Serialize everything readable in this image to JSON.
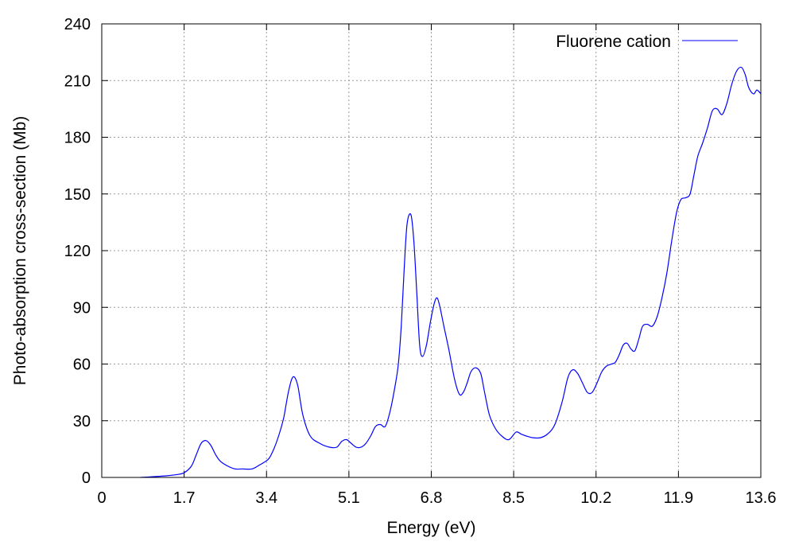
{
  "chart_data": {
    "type": "line",
    "title": "",
    "xlabel": "Energy (eV)",
    "ylabel": "Photo-absorption cross-section (Mb)",
    "xlim": [
      0,
      13.6
    ],
    "ylim": [
      0,
      240
    ],
    "xticks": [
      0,
      1.7,
      3.4,
      5.1,
      6.8,
      8.5,
      10.2,
      11.9,
      13.6
    ],
    "xtick_labels": [
      "0",
      "1.7",
      "3.4",
      "5.1",
      "6.8",
      "8.5",
      "10.2",
      "11.9",
      "13.6"
    ],
    "yticks": [
      0,
      30,
      60,
      90,
      120,
      150,
      180,
      210,
      240
    ],
    "ytick_labels": [
      "0",
      "30",
      "60",
      "90",
      "120",
      "150",
      "180",
      "210",
      "240"
    ],
    "grid": true,
    "legend_position": "top-right",
    "series": [
      {
        "name": "Fluorene cation",
        "color": "#0000ff",
        "x": [
          0.8,
          1.0,
          1.3,
          1.55,
          1.7,
          1.85,
          1.95,
          2.05,
          2.15,
          2.25,
          2.35,
          2.45,
          2.6,
          2.75,
          2.9,
          3.1,
          3.25,
          3.35,
          3.45,
          3.55,
          3.65,
          3.75,
          3.8,
          3.85,
          3.92,
          3.98,
          4.05,
          4.15,
          4.3,
          4.5,
          4.7,
          4.85,
          4.95,
          5.05,
          5.15,
          5.25,
          5.35,
          5.45,
          5.55,
          5.65,
          5.75,
          5.85,
          5.95,
          6.05,
          6.12,
          6.18,
          6.24,
          6.3,
          6.38,
          6.44,
          6.5,
          6.56,
          6.62,
          6.7,
          6.78,
          6.86,
          6.92,
          6.98,
          7.06,
          7.16,
          7.28,
          7.38,
          7.46,
          7.54,
          7.62,
          7.72,
          7.82,
          7.9,
          8.0,
          8.12,
          8.25,
          8.4,
          8.55,
          8.65,
          8.75,
          8.9,
          9.05,
          9.2,
          9.35,
          9.5,
          9.62,
          9.72,
          9.82,
          9.92,
          10.02,
          10.12,
          10.22,
          10.32,
          10.42,
          10.52,
          10.6,
          10.68,
          10.76,
          10.84,
          10.92,
          11.0,
          11.08,
          11.16,
          11.26,
          11.36,
          11.46,
          11.56,
          11.66,
          11.76,
          11.86,
          11.95,
          12.05,
          12.14,
          12.22,
          12.3,
          12.4,
          12.5,
          12.6,
          12.7,
          12.8,
          12.9,
          13.0,
          13.1,
          13.2,
          13.28,
          13.34,
          13.4,
          13.46,
          13.52,
          13.6
        ],
        "y": [
          0.0,
          0.3,
          0.8,
          1.5,
          2.5,
          6.0,
          12.0,
          18.0,
          19.5,
          17.0,
          12.0,
          8.5,
          6.0,
          4.5,
          4.5,
          4.5,
          6.5,
          8.0,
          10.0,
          15.0,
          22.0,
          31.0,
          38.0,
          45.0,
          52.0,
          53.0,
          48.0,
          33.0,
          22.0,
          18.0,
          16.0,
          16.0,
          19.0,
          20.0,
          18.0,
          16.0,
          16.0,
          18.0,
          22.0,
          27.0,
          28.0,
          27.0,
          35.0,
          48.0,
          60.0,
          80.0,
          110.0,
          134.0,
          139.0,
          125.0,
          98.0,
          70.0,
          64.0,
          70.0,
          82.0,
          92.0,
          95.0,
          90.0,
          80.0,
          68.0,
          52.0,
          44.0,
          45.0,
          50.0,
          56.0,
          58.0,
          55.0,
          45.0,
          33.0,
          26.0,
          22.0,
          20.0,
          24.0,
          23.0,
          22.0,
          21.0,
          21.0,
          23.0,
          28.0,
          40.0,
          53.0,
          57.0,
          55.0,
          50.0,
          45.0,
          45.0,
          50.0,
          56.0,
          59.0,
          60.0,
          61.0,
          65.0,
          70.0,
          71.0,
          68.0,
          67.0,
          73.0,
          80.0,
          81.0,
          80.0,
          85.0,
          95.0,
          108.0,
          125.0,
          140.0,
          147.0,
          148.0,
          150.0,
          160.0,
          170.0,
          177.0,
          185.0,
          194.0,
          195.0,
          192.0,
          198.0,
          208.0,
          215.0,
          217.0,
          213.0,
          207.0,
          204.0,
          203.0,
          205.0,
          203.0
        ]
      }
    ]
  }
}
